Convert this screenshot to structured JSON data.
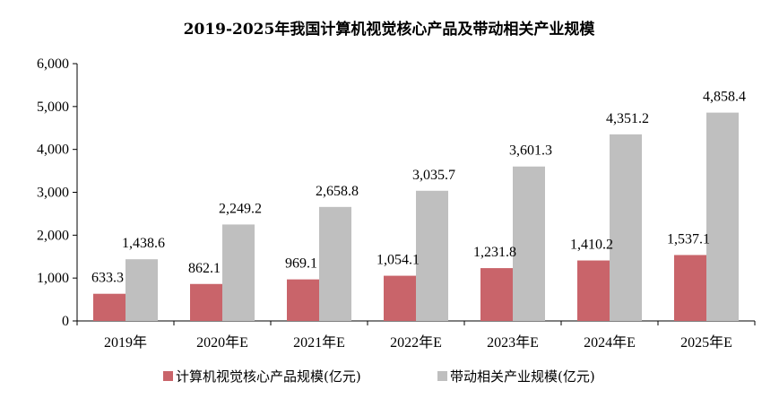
{
  "chart_data": {
    "type": "bar",
    "title": "2019-2025年我国计算机视觉核心产品及带动相关产业规模",
    "categories": [
      "2019年",
      "2020年E",
      "2021年E",
      "2022年E",
      "2023年E",
      "2024年E",
      "2025年E"
    ],
    "series": [
      {
        "name": "计算机视觉核心产品规模(亿元)",
        "color": "#c9646a",
        "values": [
          633.3,
          862.1,
          969.1,
          1054.1,
          1231.8,
          1410.2,
          1537.1
        ],
        "labels": [
          "633.3",
          "862.1",
          "969.1",
          "1,054.1",
          "1,231.8",
          "1,410.2",
          "1,537.1"
        ]
      },
      {
        "name": "带动相关产业规模(亿元)",
        "color": "#bfbfbf",
        "values": [
          1438.6,
          2249.2,
          2658.8,
          3035.7,
          3601.3,
          4351.2,
          4858.4
        ],
        "labels": [
          "1,438.6",
          "2,249.2",
          "2,658.8",
          "3,035.7",
          "3,601.3",
          "4,351.2",
          "4,858.4"
        ]
      }
    ],
    "ylim": [
      0,
      6000
    ],
    "yticks": [
      0,
      1000,
      2000,
      3000,
      4000,
      5000,
      6000
    ],
    "ytick_labels": [
      "0",
      "1,000",
      "2,000",
      "3,000",
      "4,000",
      "5,000",
      "6,000"
    ],
    "grid": false,
    "legend": "bottom"
  }
}
